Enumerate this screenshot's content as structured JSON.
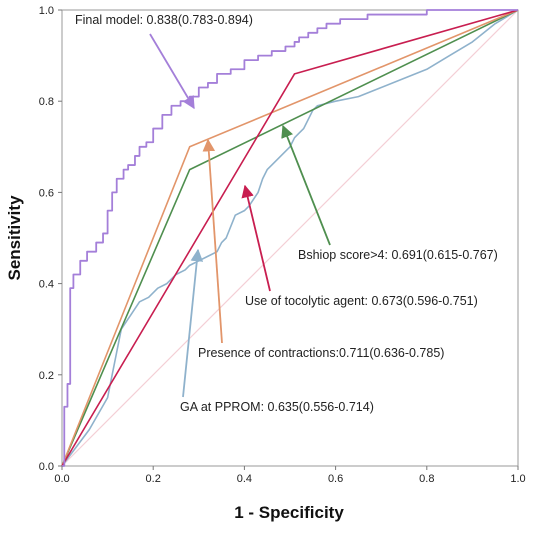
{
  "chart_data": {
    "type": "line",
    "title": "",
    "xlabel": "1 - Specificity",
    "ylabel": "Sensitivity",
    "xlim": [
      0,
      1
    ],
    "ylim": [
      0,
      1
    ],
    "x_ticks": [
      "0.0",
      "0.2",
      "0.4",
      "0.6",
      "0.8",
      "1.0"
    ],
    "y_ticks": [
      "0.0",
      "0.2",
      "0.4",
      "0.6",
      "0.8",
      "1.0"
    ],
    "grid": false,
    "reference_line": {
      "x": [
        0,
        1
      ],
      "y": [
        0,
        1
      ],
      "color": "#f4cfd6"
    },
    "series": [
      {
        "key": "final",
        "name": "Final model: 0.838(0.783-0.894)",
        "color": "#a47fd9",
        "x": [
          0,
          0.005,
          0.005,
          0.012,
          0.012,
          0.018,
          0.018,
          0.025,
          0.025,
          0.04,
          0.04,
          0.055,
          0.055,
          0.075,
          0.075,
          0.09,
          0.09,
          0.1,
          0.1,
          0.11,
          0.11,
          0.12,
          0.12,
          0.135,
          0.135,
          0.145,
          0.145,
          0.16,
          0.16,
          0.17,
          0.17,
          0.185,
          0.185,
          0.2,
          0.2,
          0.22,
          0.22,
          0.24,
          0.24,
          0.26,
          0.26,
          0.28,
          0.28,
          0.3,
          0.3,
          0.32,
          0.32,
          0.34,
          0.34,
          0.37,
          0.37,
          0.4,
          0.4,
          0.43,
          0.43,
          0.46,
          0.46,
          0.49,
          0.49,
          0.51,
          0.51,
          0.52,
          0.52,
          0.54,
          0.54,
          0.56,
          0.56,
          0.58,
          0.58,
          0.61,
          0.61,
          0.64,
          0.64,
          0.67,
          0.67,
          0.7,
          0.7,
          0.8,
          0.8,
          0.9,
          0.9,
          1.0
        ],
        "y": [
          0,
          0,
          0.13,
          0.13,
          0.18,
          0.18,
          0.39,
          0.39,
          0.42,
          0.42,
          0.45,
          0.45,
          0.47,
          0.47,
          0.49,
          0.49,
          0.51,
          0.51,
          0.56,
          0.56,
          0.6,
          0.6,
          0.63,
          0.63,
          0.65,
          0.65,
          0.66,
          0.66,
          0.68,
          0.68,
          0.7,
          0.7,
          0.71,
          0.71,
          0.74,
          0.74,
          0.77,
          0.77,
          0.79,
          0.79,
          0.8,
          0.8,
          0.81,
          0.81,
          0.83,
          0.83,
          0.84,
          0.84,
          0.86,
          0.86,
          0.87,
          0.87,
          0.89,
          0.89,
          0.9,
          0.9,
          0.91,
          0.91,
          0.92,
          0.92,
          0.93,
          0.93,
          0.94,
          0.94,
          0.95,
          0.95,
          0.96,
          0.96,
          0.97,
          0.97,
          0.98,
          0.98,
          0.98,
          0.98,
          0.99,
          0.99,
          0.99,
          0.99,
          1.0,
          1.0,
          1.0,
          1.0
        ]
      },
      {
        "key": "contractions",
        "name": "Presence of  contractions:0.711(0.636-0.785)",
        "color": "#e2956a",
        "x": [
          0,
          0.28,
          1.0
        ],
        "y": [
          0,
          0.7,
          1.0
        ]
      },
      {
        "key": "bishop",
        "name": "Bshiop score>4: 0.691(0.615-0.767)",
        "color": "#4f8f4f",
        "x": [
          0,
          0.28,
          1.0
        ],
        "y": [
          0,
          0.65,
          1.0
        ]
      },
      {
        "key": "tocolytic",
        "name": "Use of tocolytic agent: 0.673(0.596-0.751)",
        "color": "#c81e50",
        "x": [
          0,
          0.51,
          1.0
        ],
        "y": [
          0,
          0.86,
          1.0
        ]
      },
      {
        "key": "ga",
        "name": "GA at PPROM: 0.635(0.556-0.714)",
        "color": "#8fb2cc",
        "x": [
          0,
          0.06,
          0.1,
          0.12,
          0.13,
          0.15,
          0.17,
          0.19,
          0.21,
          0.23,
          0.25,
          0.27,
          0.28,
          0.3,
          0.32,
          0.34,
          0.35,
          0.36,
          0.38,
          0.4,
          0.41,
          0.43,
          0.44,
          0.45,
          0.46,
          0.48,
          0.5,
          0.51,
          0.52,
          0.53,
          0.55,
          0.56,
          0.6,
          0.65,
          0.7,
          0.75,
          0.8,
          0.85,
          0.9,
          0.95,
          1.0
        ],
        "y": [
          0,
          0.08,
          0.15,
          0.25,
          0.3,
          0.33,
          0.36,
          0.37,
          0.39,
          0.4,
          0.42,
          0.43,
          0.44,
          0.45,
          0.46,
          0.47,
          0.49,
          0.5,
          0.55,
          0.56,
          0.57,
          0.6,
          0.63,
          0.65,
          0.66,
          0.68,
          0.7,
          0.72,
          0.73,
          0.74,
          0.78,
          0.79,
          0.8,
          0.81,
          0.83,
          0.85,
          0.87,
          0.9,
          0.93,
          0.97,
          1.0
        ]
      }
    ],
    "annotations": [
      {
        "series": "final",
        "text": "Final model: 0.838(0.783-0.894)"
      },
      {
        "series": "bishop",
        "text": "Bshiop score>4: 0.691(0.615-0.767)"
      },
      {
        "series": "tocolytic",
        "text": "Use of tocolytic agent: 0.673(0.596-0.751)"
      },
      {
        "series": "contractions",
        "text": "Presence of  contractions:0.711(0.636-0.785)"
      },
      {
        "series": "ga",
        "text": "GA at PPROM: 0.635(0.556-0.714)"
      }
    ]
  }
}
